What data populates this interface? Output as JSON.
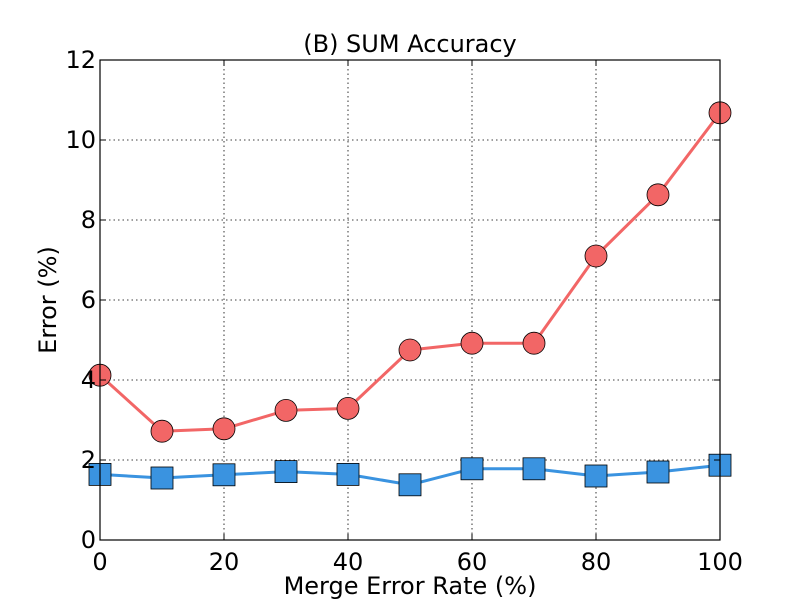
{
  "chart_data": {
    "type": "line",
    "title": "(B) SUM Accuracy",
    "xlabel": "Merge Error Rate (%)",
    "ylabel": "Error (%)",
    "xlim": [
      0,
      100
    ],
    "ylim": [
      0,
      12
    ],
    "xticks": [
      0,
      20,
      40,
      60,
      80,
      100
    ],
    "yticks": [
      0,
      2,
      4,
      6,
      8,
      10,
      12
    ],
    "grid": true,
    "x": [
      0,
      10,
      20,
      30,
      40,
      50,
      60,
      70,
      80,
      90,
      100
    ],
    "series": [
      {
        "marker": "circle",
        "color": "#f26666",
        "values": [
          4.12,
          2.72,
          2.78,
          3.24,
          3.29,
          4.75,
          4.92,
          4.92,
          7.1,
          8.63,
          10.68
        ]
      },
      {
        "marker": "square",
        "color": "#3a93e0",
        "values": [
          1.64,
          1.55,
          1.63,
          1.71,
          1.64,
          1.38,
          1.78,
          1.78,
          1.6,
          1.7,
          1.87
        ]
      }
    ]
  }
}
